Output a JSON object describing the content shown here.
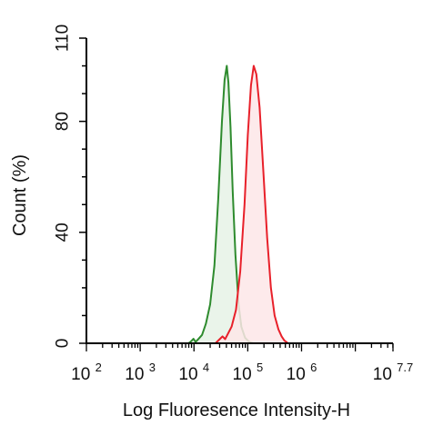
{
  "chart_data": {
    "type": "area",
    "title": "",
    "xlabel": "Log Fluoresence Intensity-H",
    "ylabel": "Count  (%)",
    "x_scale": "log10",
    "xlim_log10": [
      2,
      7.7
    ],
    "ylim": [
      0,
      110
    ],
    "x_ticks": [
      {
        "base": "10",
        "exp": "2",
        "log10": 2
      },
      {
        "base": "10",
        "exp": "3",
        "log10": 3
      },
      {
        "base": "10",
        "exp": "4",
        "log10": 4
      },
      {
        "base": "10",
        "exp": "5",
        "log10": 5
      },
      {
        "base": "10",
        "exp": "6",
        "log10": 6
      },
      {
        "base": "10",
        "exp": "7.7",
        "log10": 7.7
      }
    ],
    "y_ticks": [
      0,
      40,
      80,
      110
    ],
    "grid": false,
    "series": [
      {
        "color": "#2e8b2e",
        "fill": "#e6f2e6",
        "points_log10": [
          [
            3.9,
            0
          ],
          [
            3.95,
            0.8
          ],
          [
            3.99,
            1.6
          ],
          [
            4.03,
            0.5
          ],
          [
            4.08,
            1.5
          ],
          [
            4.15,
            3
          ],
          [
            4.22,
            7
          ],
          [
            4.3,
            14
          ],
          [
            4.38,
            28
          ],
          [
            4.45,
            52
          ],
          [
            4.52,
            80
          ],
          [
            4.57,
            95
          ],
          [
            4.61,
            100
          ],
          [
            4.64,
            94
          ],
          [
            4.68,
            78
          ],
          [
            4.72,
            55
          ],
          [
            4.77,
            32
          ],
          [
            4.83,
            14
          ],
          [
            4.88,
            6
          ],
          [
            4.95,
            2
          ],
          [
            5.02,
            0.6
          ],
          [
            5.1,
            0
          ]
        ]
      },
      {
        "color": "#e8202a",
        "fill": "#fde6e8",
        "points_log10": [
          [
            4.4,
            0
          ],
          [
            4.48,
            1.5
          ],
          [
            4.53,
            2.5
          ],
          [
            4.58,
            1.5
          ],
          [
            4.62,
            3
          ],
          [
            4.7,
            6
          ],
          [
            4.78,
            12
          ],
          [
            4.86,
            26
          ],
          [
            4.94,
            50
          ],
          [
            5.0,
            75
          ],
          [
            5.06,
            93
          ],
          [
            5.11,
            100
          ],
          [
            5.16,
            97
          ],
          [
            5.22,
            85
          ],
          [
            5.29,
            62
          ],
          [
            5.36,
            38
          ],
          [
            5.43,
            20
          ],
          [
            5.5,
            10
          ],
          [
            5.57,
            5
          ],
          [
            5.63,
            2.5
          ],
          [
            5.68,
            1
          ],
          [
            5.75,
            0
          ]
        ]
      }
    ]
  }
}
